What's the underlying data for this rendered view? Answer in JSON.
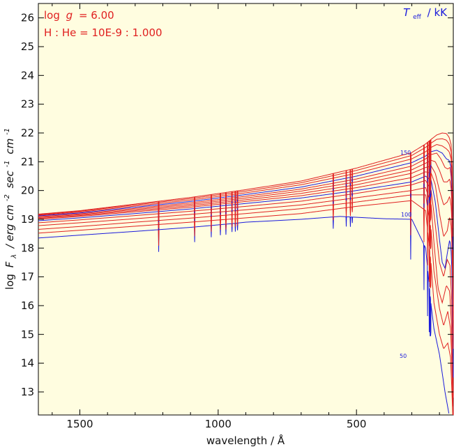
{
  "chart_data": {
    "type": "line",
    "xlabel": "wavelength / Å",
    "ylabel_parts": {
      "log": "log",
      "F": "F",
      "lambda_sub": "λ",
      "units_a": "/ erg cm",
      "exp_a": "-2",
      "units_b": "sec",
      "exp_b": "-1",
      "units_c": "cm",
      "exp_c": "-1"
    },
    "xlim": [
      1650,
      150
    ],
    "ylim": [
      12.2,
      26.5
    ],
    "xticks": [
      1500,
      1000,
      500
    ],
    "yticks": [
      13,
      14,
      15,
      16,
      17,
      18,
      19,
      20,
      21,
      22,
      23,
      24,
      25,
      26
    ],
    "annotations": {
      "logg_prefix": "log",
      "logg_g": "g",
      "logg_value": "= 6.00",
      "abundance": "H : He = 10E-9 : 1.000",
      "teff_T": "T",
      "teff_sub": "eff",
      "teff_unit": "/ kK"
    },
    "curve_labels": [
      "150",
      "100",
      "50"
    ],
    "series": [
      {
        "teff": 50,
        "color": "#1a1adc",
        "values": [
          [
            1650,
            18.35
          ],
          [
            1500,
            18.45
          ],
          [
            1300,
            18.58
          ],
          [
            1100,
            18.72
          ],
          [
            950,
            18.85
          ],
          [
            900,
            18.9
          ],
          [
            700,
            19.0
          ],
          [
            560,
            19.1
          ],
          [
            460,
            19.05
          ],
          [
            400,
            19.02
          ],
          [
            300,
            19.0
          ],
          [
            250,
            18.0
          ],
          [
            230,
            16.0
          ],
          [
            220,
            15.2
          ],
          [
            200,
            14.3
          ],
          [
            180,
            13.0
          ],
          [
            165,
            12.2
          ]
        ]
      },
      {
        "teff": 60,
        "color": "#e02020",
        "values": [
          [
            1650,
            18.52
          ],
          [
            1500,
            18.62
          ],
          [
            1300,
            18.76
          ],
          [
            1100,
            18.9
          ],
          [
            900,
            19.05
          ],
          [
            700,
            19.2
          ],
          [
            500,
            19.45
          ],
          [
            300,
            19.65
          ],
          [
            250,
            19.3
          ],
          [
            230,
            17.4
          ],
          [
            220,
            16.1
          ],
          [
            200,
            15.0
          ],
          [
            185,
            14.5
          ],
          [
            170,
            14.7
          ],
          [
            160,
            14.2
          ],
          [
            155,
            13.0
          ],
          [
            152,
            12.2
          ]
        ]
      },
      {
        "teff": 70,
        "color": "#e02020",
        "values": [
          [
            1650,
            18.65
          ],
          [
            1500,
            18.75
          ],
          [
            1300,
            18.9
          ],
          [
            1100,
            19.04
          ],
          [
            900,
            19.2
          ],
          [
            700,
            19.37
          ],
          [
            500,
            19.6
          ],
          [
            300,
            19.85
          ],
          [
            250,
            19.85
          ],
          [
            230,
            18.6
          ],
          [
            220,
            17.2
          ],
          [
            200,
            15.9
          ],
          [
            185,
            15.3
          ],
          [
            170,
            15.8
          ],
          [
            160,
            15.2
          ],
          [
            155,
            14.0
          ],
          [
            152,
            12.5
          ]
        ]
      },
      {
        "teff": 80,
        "color": "#e02020",
        "values": [
          [
            1650,
            18.78
          ],
          [
            1500,
            18.88
          ],
          [
            1300,
            19.02
          ],
          [
            1100,
            19.17
          ],
          [
            900,
            19.33
          ],
          [
            700,
            19.5
          ],
          [
            500,
            19.75
          ],
          [
            300,
            20.0
          ],
          [
            250,
            20.1
          ],
          [
            230,
            19.5
          ],
          [
            220,
            18.2
          ],
          [
            205,
            16.6
          ],
          [
            190,
            16.1
          ],
          [
            175,
            16.7
          ],
          [
            163,
            16.5
          ],
          [
            156,
            15.2
          ],
          [
            152,
            13.5
          ],
          [
            150,
            12.2
          ]
        ]
      },
      {
        "teff": 90,
        "color": "#e02020",
        "values": [
          [
            1650,
            18.88
          ],
          [
            1500,
            18.98
          ],
          [
            1300,
            19.13
          ],
          [
            1100,
            19.28
          ],
          [
            900,
            19.45
          ],
          [
            700,
            19.63
          ],
          [
            500,
            19.9
          ],
          [
            300,
            20.2
          ],
          [
            250,
            20.35
          ],
          [
            230,
            20.0
          ],
          [
            215,
            18.8
          ],
          [
            200,
            17.5
          ],
          [
            185,
            17.0
          ],
          [
            172,
            17.6
          ],
          [
            162,
            17.4
          ],
          [
            156,
            16.2
          ],
          [
            152,
            14.6
          ],
          [
            150,
            12.8
          ]
        ]
      },
      {
        "teff": 100,
        "color": "#1a1adc",
        "values": [
          [
            1650,
            18.95
          ],
          [
            1500,
            19.05
          ],
          [
            1300,
            19.2
          ],
          [
            1100,
            19.36
          ],
          [
            900,
            19.55
          ],
          [
            700,
            19.74
          ],
          [
            500,
            20.0
          ],
          [
            300,
            20.3
          ],
          [
            250,
            20.5
          ],
          [
            230,
            20.35
          ],
          [
            215,
            19.6
          ],
          [
            200,
            18.3
          ],
          [
            190,
            17.5
          ],
          [
            180,
            17.3
          ],
          [
            172,
            17.8
          ],
          [
            163,
            18.3
          ],
          [
            157,
            17.8
          ],
          [
            153,
            16.3
          ],
          [
            150,
            13.5
          ]
        ]
      },
      {
        "teff": 110,
        "color": "#e02020",
        "values": [
          [
            1650,
            19.0
          ],
          [
            1500,
            19.1
          ],
          [
            1300,
            19.26
          ],
          [
            1100,
            19.42
          ],
          [
            900,
            19.62
          ],
          [
            700,
            19.82
          ],
          [
            500,
            20.1
          ],
          [
            300,
            20.45
          ],
          [
            250,
            20.65
          ],
          [
            230,
            20.6
          ],
          [
            215,
            20.2
          ],
          [
            200,
            19.2
          ],
          [
            185,
            18.4
          ],
          [
            172,
            18.6
          ],
          [
            163,
            19.1
          ],
          [
            157,
            18.7
          ],
          [
            153,
            17.2
          ],
          [
            150,
            14.5
          ]
        ]
      },
      {
        "teff": 120,
        "color": "#e02020",
        "values": [
          [
            1650,
            19.03
          ],
          [
            1500,
            19.13
          ],
          [
            1300,
            19.3
          ],
          [
            1100,
            19.47
          ],
          [
            900,
            19.68
          ],
          [
            700,
            19.9
          ],
          [
            500,
            20.2
          ],
          [
            300,
            20.6
          ],
          [
            250,
            20.8
          ],
          [
            230,
            20.85
          ],
          [
            215,
            20.6
          ],
          [
            200,
            20.0
          ],
          [
            185,
            19.5
          ],
          [
            172,
            19.6
          ],
          [
            163,
            19.8
          ],
          [
            157,
            19.4
          ],
          [
            153,
            18.0
          ],
          [
            150,
            15.0
          ]
        ]
      },
      {
        "teff": 130,
        "color": "#e02020",
        "values": [
          [
            1650,
            19.06
          ],
          [
            1500,
            19.16
          ],
          [
            1300,
            19.34
          ],
          [
            1100,
            19.52
          ],
          [
            900,
            19.74
          ],
          [
            700,
            19.98
          ],
          [
            500,
            20.3
          ],
          [
            300,
            20.72
          ],
          [
            250,
            20.95
          ],
          [
            230,
            21.05
          ],
          [
            215,
            21.0
          ],
          [
            200,
            20.7
          ],
          [
            185,
            20.3
          ],
          [
            172,
            20.3
          ],
          [
            163,
            20.4
          ],
          [
            157,
            20.0
          ],
          [
            153,
            18.6
          ],
          [
            150,
            15.5
          ]
        ]
      },
      {
        "teff": 140,
        "color": "#e02020",
        "values": [
          [
            1650,
            19.09
          ],
          [
            1500,
            19.19
          ],
          [
            1300,
            19.38
          ],
          [
            1100,
            19.57
          ],
          [
            900,
            19.8
          ],
          [
            700,
            20.05
          ],
          [
            500,
            20.4
          ],
          [
            300,
            20.85
          ],
          [
            250,
            21.1
          ],
          [
            230,
            21.25
          ],
          [
            210,
            21.3
          ],
          [
            195,
            21.1
          ],
          [
            180,
            20.8
          ],
          [
            170,
            20.75
          ],
          [
            162,
            20.8
          ],
          [
            157,
            20.4
          ],
          [
            153,
            19.0
          ],
          [
            150,
            15.8
          ]
        ]
      },
      {
        "teff": 150,
        "color": "#1a1adc",
        "values": [
          [
            1650,
            19.12
          ],
          [
            1500,
            19.22
          ],
          [
            1300,
            19.42
          ],
          [
            1100,
            19.62
          ],
          [
            900,
            19.86
          ],
          [
            700,
            20.12
          ],
          [
            500,
            20.5
          ],
          [
            300,
            20.97
          ],
          [
            250,
            21.2
          ],
          [
            230,
            21.35
          ],
          [
            210,
            21.4
          ],
          [
            190,
            21.3
          ],
          [
            175,
            21.1
          ],
          [
            165,
            21.05
          ],
          [
            158,
            20.8
          ],
          [
            154,
            19.8
          ],
          [
            151,
            17.0
          ]
        ]
      },
      {
        "teff": 160,
        "color": "#e02020",
        "values": [
          [
            1650,
            19.14
          ],
          [
            1500,
            19.25
          ],
          [
            1300,
            19.46
          ],
          [
            1100,
            19.67
          ],
          [
            900,
            19.92
          ],
          [
            700,
            20.2
          ],
          [
            500,
            20.6
          ],
          [
            300,
            21.1
          ],
          [
            250,
            21.35
          ],
          [
            230,
            21.5
          ],
          [
            210,
            21.6
          ],
          [
            190,
            21.55
          ],
          [
            175,
            21.45
          ],
          [
            165,
            21.35
          ],
          [
            158,
            21.1
          ],
          [
            154,
            20.2
          ],
          [
            151,
            17.5
          ]
        ]
      },
      {
        "teff": 170,
        "color": "#e02020",
        "values": [
          [
            1650,
            19.16
          ],
          [
            1500,
            19.28
          ],
          [
            1300,
            19.5
          ],
          [
            1100,
            19.72
          ],
          [
            900,
            19.98
          ],
          [
            700,
            20.27
          ],
          [
            500,
            20.7
          ],
          [
            300,
            21.22
          ],
          [
            250,
            21.5
          ],
          [
            230,
            21.65
          ],
          [
            210,
            21.78
          ],
          [
            190,
            21.8
          ],
          [
            175,
            21.75
          ],
          [
            165,
            21.62
          ],
          [
            158,
            21.35
          ],
          [
            154,
            20.5
          ],
          [
            151,
            17.8
          ]
        ]
      },
      {
        "teff": 180,
        "color": "#e02020",
        "values": [
          [
            1650,
            19.18
          ],
          [
            1500,
            19.3
          ],
          [
            1300,
            19.53
          ],
          [
            1100,
            19.76
          ],
          [
            900,
            20.03
          ],
          [
            700,
            20.33
          ],
          [
            500,
            20.78
          ],
          [
            300,
            21.32
          ],
          [
            250,
            21.62
          ],
          [
            230,
            21.78
          ],
          [
            210,
            21.93
          ],
          [
            190,
            22.0
          ],
          [
            175,
            21.98
          ],
          [
            165,
            21.85
          ],
          [
            158,
            21.6
          ],
          [
            154,
            20.8
          ],
          [
            151,
            18.0
          ]
        ]
      }
    ],
    "absorption_lines": [
      {
        "x": 1215,
        "depth": 1.0
      },
      {
        "x": 1085,
        "depth": 0.7
      },
      {
        "x": 1025,
        "depth": 0.55
      },
      {
        "x": 992,
        "depth": 0.5
      },
      {
        "x": 972,
        "depth": 0.5
      },
      {
        "x": 950,
        "depth": 0.4
      },
      {
        "x": 938,
        "depth": 0.4
      },
      {
        "x": 930,
        "depth": 0.35
      },
      {
        "x": 584,
        "depth": 0.6
      },
      {
        "x": 537,
        "depth": 0.5
      },
      {
        "x": 522,
        "depth": 0.5
      },
      {
        "x": 515,
        "depth": 0.3
      },
      {
        "x": 304,
        "depth": 2.0
      },
      {
        "x": 256,
        "depth": 1.8
      },
      {
        "x": 243,
        "depth": 1.6
      },
      {
        "x": 237,
        "depth": 1.4
      },
      {
        "x": 234,
        "depth": 1.2
      },
      {
        "x": 232,
        "depth": 1.0
      },
      {
        "x": 231,
        "depth": 0.8
      }
    ]
  }
}
